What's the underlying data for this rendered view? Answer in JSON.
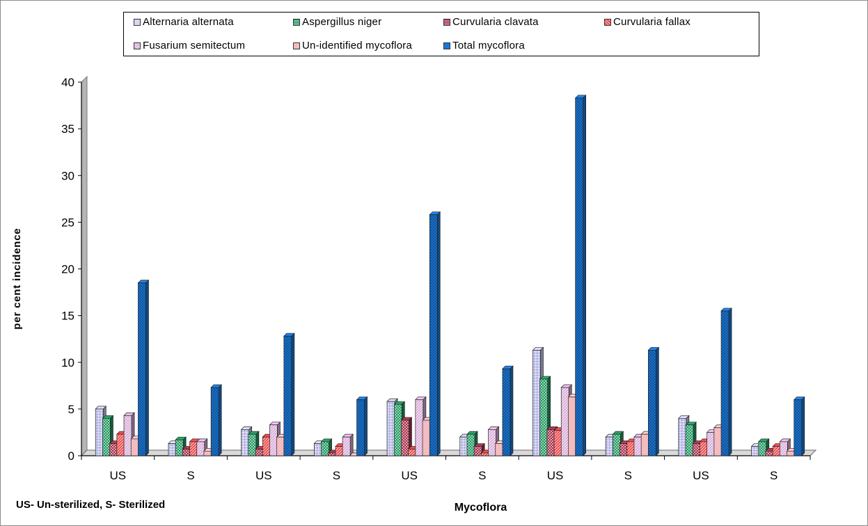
{
  "chart_data": {
    "type": "bar",
    "xlabel": "Mycoflora",
    "ylabel": "per cent incidence",
    "ylim": [
      0,
      40
    ],
    "yticks": [
      0,
      5,
      10,
      15,
      20,
      25,
      30,
      35,
      40
    ],
    "categories": [
      "US",
      "S",
      "US",
      "S",
      "US",
      "S",
      "US",
      "S",
      "US",
      "S"
    ],
    "series": [
      {
        "name": "Alternaria alternata",
        "color": "#c9c9f2",
        "pattern": "dots",
        "values": [
          5.0,
          1.3,
          2.8,
          1.3,
          5.8,
          2.0,
          11.3,
          2.0,
          4.0,
          1.0
        ]
      },
      {
        "name": "Aspergillus niger",
        "color": "#1f9a5f",
        "pattern": "check",
        "values": [
          4.0,
          1.7,
          2.3,
          1.5,
          5.5,
          2.3,
          8.2,
          2.3,
          3.3,
          1.5
        ]
      },
      {
        "name": "Curvularia clavata",
        "color": "#a8314d",
        "pattern": "check",
        "values": [
          1.3,
          0.7,
          0.7,
          0.3,
          3.8,
          1.0,
          2.8,
          1.3,
          1.3,
          0.5
        ]
      },
      {
        "name": "Curvularia fallax",
        "color": "#ee4545",
        "pattern": "hatch",
        "values": [
          2.3,
          1.5,
          2.0,
          1.0,
          0.7,
          0.3,
          2.7,
          1.5,
          1.5,
          1.0
        ]
      },
      {
        "name": "Fusarium semitectum",
        "color": "#d9aed9",
        "pattern": "hatch",
        "values": [
          4.3,
          1.5,
          3.3,
          2.0,
          6.0,
          2.8,
          7.3,
          2.0,
          2.5,
          1.5
        ]
      },
      {
        "name": "Un-identified mycoflora",
        "color": "#f3bcc0",
        "pattern": "none",
        "values": [
          1.8,
          0.5,
          2.0,
          0.0,
          3.8,
          1.3,
          6.3,
          2.3,
          3.0,
          0.5
        ]
      },
      {
        "name": "Total mycoflora",
        "color": "#1a78d8",
        "pattern": "cross",
        "values": [
          18.5,
          7.3,
          12.8,
          6.0,
          25.8,
          9.3,
          38.3,
          11.3,
          15.5,
          6.0
        ]
      }
    ],
    "legend_position": "top",
    "grid": false
  },
  "note": "US- Un-sterilized,  S- Sterilized"
}
